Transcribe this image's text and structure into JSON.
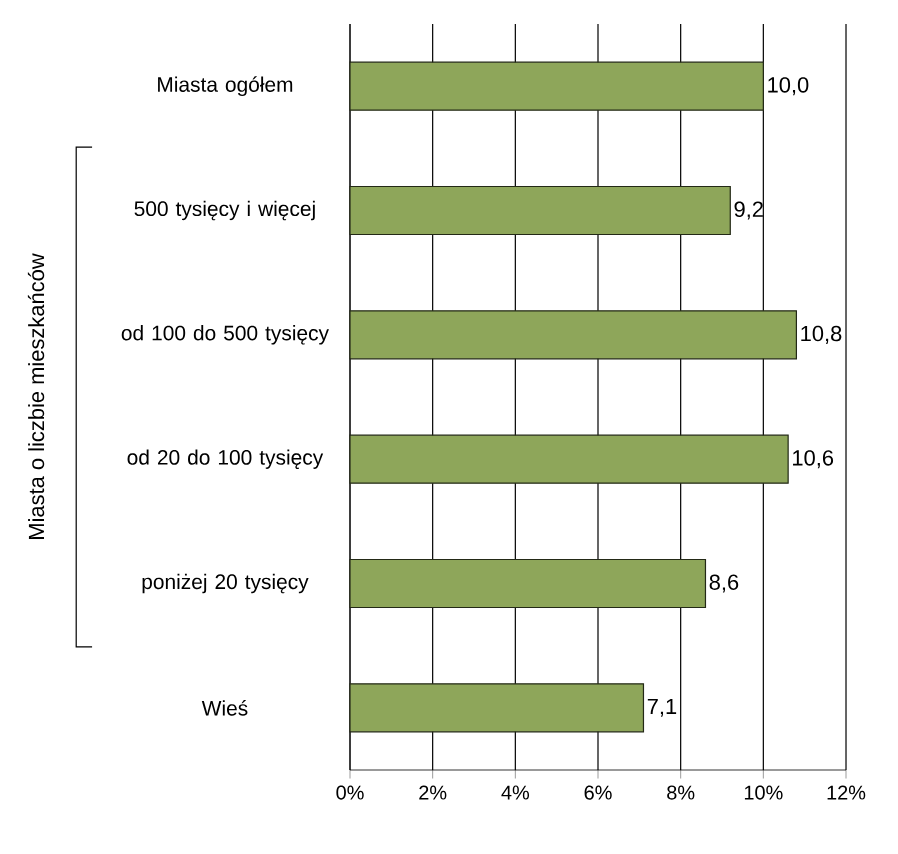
{
  "chart_data": {
    "type": "bar",
    "orientation": "horizontal",
    "ylabel": "Miasta o liczbie mieszkańców",
    "categories": [
      "Miasta ogółem",
      "500 tysięcy i więcej",
      "od 100 do 500 tysięcy",
      "od 20 do 100 tysięcy",
      "poniżej 20 tysięcy",
      "Wieś"
    ],
    "values": [
      10.0,
      9.2,
      10.8,
      10.6,
      8.6,
      7.1
    ],
    "value_labels": [
      "10,0",
      "9,2",
      "10,8",
      "10,6",
      "8,6",
      "7,1"
    ],
    "color": "#8ea65a",
    "xlim": [
      0,
      12
    ],
    "xticks": [
      {
        "value": 0,
        "label": "0%"
      },
      {
        "value": 2,
        "label": "2%"
      },
      {
        "value": 4,
        "label": "4%"
      },
      {
        "value": 6,
        "label": "6%"
      },
      {
        "value": 8,
        "label": "8%"
      },
      {
        "value": 10,
        "label": "10%"
      },
      {
        "value": 12,
        "label": "12%"
      }
    ],
    "grid": "x"
  }
}
